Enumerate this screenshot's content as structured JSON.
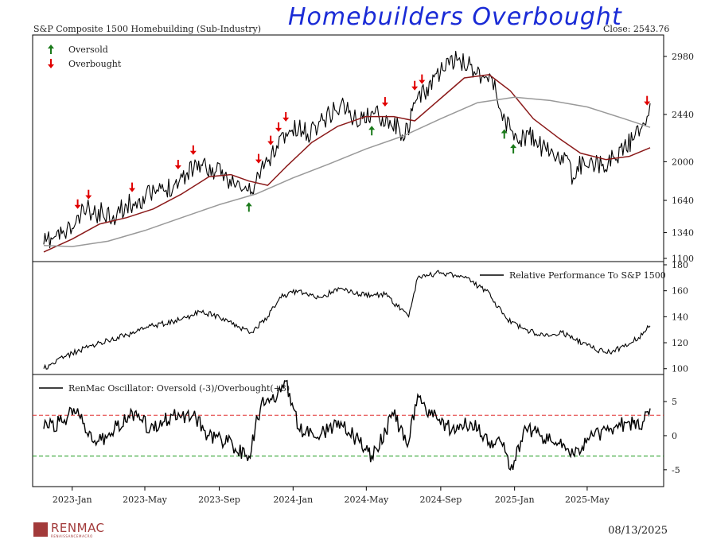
{
  "header": {
    "chart_title": "S&P Composite 1500 Homebuilding (Sub-Industry)",
    "annotation": "Homebuilders Overbought",
    "close_label": "Close: 2543.76"
  },
  "footer": {
    "brand": "RENMAC",
    "brand_sub": "RENAISSANCEMACRO",
    "date": "08/13/2025"
  },
  "colors": {
    "price": "#000000",
    "ma_short": "#8b1a1a",
    "ma_long": "#999999",
    "oversold_arrow": "#1a7a1a",
    "overbought_arrow": "#e00000",
    "overbought_line": "#e03030",
    "oversold_line": "#1a9a1a"
  },
  "chart_data": [
    {
      "type": "line",
      "panel": "price",
      "legend": [
        "Oversold",
        "Overbought"
      ],
      "ylim": [
        1100,
        3150
      ],
      "yticks": [
        1100,
        1340,
        1640,
        2000,
        2440,
        2980
      ],
      "xticks": [
        "2023-Jan",
        "2023-May",
        "2023-Sep",
        "2024-Jan",
        "2024-May",
        "2024-Sep",
        "2025-Jan",
        "2025-May"
      ],
      "x_range": [
        "2022-11-15",
        "2025-08-13"
      ],
      "series": [
        {
          "role": "price",
          "points": [
            [
              "2022-11-15",
              1230
            ],
            [
              "2022-12-01",
              1290
            ],
            [
              "2022-12-15",
              1330
            ],
            [
              "2023-01-01",
              1380
            ],
            [
              "2023-01-15",
              1500
            ],
            [
              "2023-01-25",
              1560
            ],
            [
              "2023-02-05",
              1510
            ],
            [
              "2023-02-20",
              1530
            ],
            [
              "2023-03-10",
              1500
            ],
            [
              "2023-04-01",
              1590
            ],
            [
              "2023-04-20",
              1640
            ],
            [
              "2023-05-10",
              1700
            ],
            [
              "2023-06-01",
              1730
            ],
            [
              "2023-06-20",
              1800
            ],
            [
              "2023-07-10",
              1900
            ],
            [
              "2023-07-25",
              1990
            ],
            [
              "2023-08-10",
              1950
            ],
            [
              "2023-08-25",
              1900
            ],
            [
              "2023-09-10",
              1880
            ],
            [
              "2023-09-25",
              1800
            ],
            [
              "2023-10-10",
              1740
            ],
            [
              "2023-10-25",
              1720
            ],
            [
              "2023-11-05",
              1880
            ],
            [
              "2023-11-20",
              2000
            ],
            [
              "2023-12-05",
              2150
            ],
            [
              "2023-12-20",
              2270
            ],
            [
              "2024-01-10",
              2300
            ],
            [
              "2024-01-25",
              2260
            ],
            [
              "2024-02-15",
              2380
            ],
            [
              "2024-03-10",
              2480
            ],
            [
              "2024-03-25",
              2540
            ],
            [
              "2024-04-10",
              2390
            ],
            [
              "2024-04-25",
              2400
            ],
            [
              "2024-05-15",
              2450
            ],
            [
              "2024-06-05",
              2400
            ],
            [
              "2024-06-25",
              2300
            ],
            [
              "2024-07-10",
              2250
            ],
            [
              "2024-07-18",
              2550
            ],
            [
              "2024-08-05",
              2640
            ],
            [
              "2024-08-25",
              2820
            ],
            [
              "2024-09-15",
              2900
            ],
            [
              "2024-09-30",
              2950
            ],
            [
              "2024-10-20",
              2900
            ],
            [
              "2024-11-10",
              2800
            ],
            [
              "2024-11-25",
              2770
            ],
            [
              "2024-12-10",
              2460
            ],
            [
              "2024-12-25",
              2300
            ],
            [
              "2025-01-10",
              2200
            ],
            [
              "2025-01-25",
              2250
            ],
            [
              "2025-02-10",
              2150
            ],
            [
              "2025-03-01",
              2080
            ],
            [
              "2025-03-20",
              2060
            ],
            [
              "2025-04-08",
              1850
            ],
            [
              "2025-04-25",
              2020
            ],
            [
              "2025-05-10",
              1990
            ],
            [
              "2025-05-25",
              1960
            ],
            [
              "2025-06-15",
              2040
            ],
            [
              "2025-07-01",
              2150
            ],
            [
              "2025-07-15",
              2200
            ],
            [
              "2025-07-28",
              2300
            ],
            [
              "2025-08-08",
              2420
            ],
            [
              "2025-08-13",
              2544
            ]
          ]
        },
        {
          "role": "ma_short",
          "points": [
            [
              "2022-11-15",
              1160
            ],
            [
              "2023-01-01",
              1280
            ],
            [
              "2023-02-15",
              1420
            ],
            [
              "2023-04-01",
              1480
            ],
            [
              "2023-05-15",
              1560
            ],
            [
              "2023-07-01",
              1700
            ],
            [
              "2023-08-15",
              1860
            ],
            [
              "2023-09-20",
              1880
            ],
            [
              "2023-10-20",
              1820
            ],
            [
              "2023-11-20",
              1780
            ],
            [
              "2023-12-20",
              1950
            ],
            [
              "2024-02-01",
              2180
            ],
            [
              "2024-03-15",
              2330
            ],
            [
              "2024-04-30",
              2420
            ],
            [
              "2024-06-15",
              2420
            ],
            [
              "2024-07-20",
              2380
            ],
            [
              "2024-08-30",
              2580
            ],
            [
              "2024-10-10",
              2780
            ],
            [
              "2024-11-20",
              2810
            ],
            [
              "2024-12-25",
              2660
            ],
            [
              "2025-02-01",
              2400
            ],
            [
              "2025-03-15",
              2220
            ],
            [
              "2025-04-20",
              2080
            ],
            [
              "2025-06-01",
              2020
            ],
            [
              "2025-07-10",
              2050
            ],
            [
              "2025-08-13",
              2130
            ]
          ]
        },
        {
          "role": "ma_long",
          "points": [
            [
              "2022-11-15",
              1220
            ],
            [
              "2023-01-01",
              1210
            ],
            [
              "2023-03-01",
              1260
            ],
            [
              "2023-05-01",
              1360
            ],
            [
              "2023-07-01",
              1480
            ],
            [
              "2023-09-01",
              1600
            ],
            [
              "2023-11-01",
              1700
            ],
            [
              "2024-01-01",
              1850
            ],
            [
              "2024-03-01",
              1980
            ],
            [
              "2024-05-01",
              2120
            ],
            [
              "2024-07-01",
              2240
            ],
            [
              "2024-09-01",
              2400
            ],
            [
              "2024-11-01",
              2550
            ],
            [
              "2025-01-01",
              2600
            ],
            [
              "2025-03-01",
              2570
            ],
            [
              "2025-05-01",
              2510
            ],
            [
              "2025-07-01",
              2400
            ],
            [
              "2025-08-13",
              2320
            ]
          ]
        }
      ],
      "overbought_dates": [
        "2023-01-10",
        "2023-01-28",
        "2023-04-10",
        "2023-06-25",
        "2023-07-20",
        "2023-11-05",
        "2023-11-25",
        "2023-12-08",
        "2023-12-20",
        "2024-06-01",
        "2024-07-20",
        "2024-08-01",
        "2025-08-08"
      ],
      "oversold_dates": [
        "2023-10-20",
        "2024-05-10",
        "2024-12-15",
        "2024-12-30"
      ]
    },
    {
      "type": "line",
      "panel": "relative",
      "legend": [
        "Relative Performance To S&P 1500"
      ],
      "ylim": [
        98,
        180
      ],
      "yticks": [
        100,
        120,
        140,
        160,
        180
      ],
      "series": [
        {
          "name": "Relative Performance To S&P 1500",
          "points": [
            [
              "2022-11-15",
              100
            ],
            [
              "2023-01-01",
              112
            ],
            [
              "2023-02-15",
              120
            ],
            [
              "2023-04-01",
              126
            ],
            [
              "2023-05-15",
              133
            ],
            [
              "2023-07-01",
              138
            ],
            [
              "2023-08-01",
              144
            ],
            [
              "2023-09-01",
              140
            ],
            [
              "2023-10-01",
              132
            ],
            [
              "2023-10-25",
              128
            ],
            [
              "2023-11-20",
              140
            ],
            [
              "2023-12-10",
              155
            ],
            [
              "2024-01-10",
              160
            ],
            [
              "2024-02-15",
              155
            ],
            [
              "2024-03-20",
              162
            ],
            [
              "2024-04-20",
              157
            ],
            [
              "2024-06-01",
              157
            ],
            [
              "2024-07-10",
              140
            ],
            [
              "2024-07-25",
              170
            ],
            [
              "2024-09-01",
              174
            ],
            [
              "2024-10-10",
              170
            ],
            [
              "2024-11-15",
              160
            ],
            [
              "2024-12-20",
              138
            ],
            [
              "2025-01-20",
              130
            ],
            [
              "2025-02-20",
              125
            ],
            [
              "2025-03-20",
              128
            ],
            [
              "2025-05-01",
              118
            ],
            [
              "2025-06-01",
              112
            ],
            [
              "2025-07-01",
              117
            ],
            [
              "2025-07-25",
              124
            ],
            [
              "2025-08-13",
              133
            ]
          ]
        }
      ]
    },
    {
      "type": "line",
      "panel": "oscillator",
      "legend": [
        "RenMac Oscillator: Oversold (-3)/Overbought(+3)"
      ],
      "ylim": [
        -7,
        8.5
      ],
      "yticks": [
        -5,
        0,
        5
      ],
      "reference_lines": {
        "overbought": 3,
        "oversold": -3
      },
      "series": [
        {
          "name": "RenMac Oscillator: Oversold (-3)/Overbought(+3)",
          "points": [
            [
              "2022-11-15",
              1
            ],
            [
              "2022-12-15",
              2
            ],
            [
              "2023-01-10",
              4
            ],
            [
              "2023-02-05",
              -1
            ],
            [
              "2023-03-01",
              0
            ],
            [
              "2023-04-10",
              3.5
            ],
            [
              "2023-05-10",
              1
            ],
            [
              "2023-06-15",
              3
            ],
            [
              "2023-07-20",
              3
            ],
            [
              "2023-08-15",
              0
            ],
            [
              "2023-09-15",
              -1
            ],
            [
              "2023-10-20",
              -3
            ],
            [
              "2023-11-10",
              5
            ],
            [
              "2023-12-01",
              5
            ],
            [
              "2023-12-20",
              8
            ],
            [
              "2024-01-10",
              1
            ],
            [
              "2024-02-15",
              0
            ],
            [
              "2024-03-20",
              2
            ],
            [
              "2024-04-20",
              -1
            ],
            [
              "2024-05-10",
              -3
            ],
            [
              "2024-06-15",
              3
            ],
            [
              "2024-07-10",
              -1
            ],
            [
              "2024-07-25",
              6
            ],
            [
              "2024-08-15",
              3
            ],
            [
              "2024-09-20",
              1
            ],
            [
              "2024-10-20",
              2
            ],
            [
              "2024-11-20",
              -1
            ],
            [
              "2024-12-10",
              -1
            ],
            [
              "2024-12-25",
              -5
            ],
            [
              "2025-01-20",
              1
            ],
            [
              "2025-02-15",
              0
            ],
            [
              "2025-03-10",
              -1
            ],
            [
              "2025-04-10",
              -3
            ],
            [
              "2025-05-10",
              0
            ],
            [
              "2025-06-10",
              1
            ],
            [
              "2025-07-10",
              2
            ],
            [
              "2025-07-28",
              1
            ],
            [
              "2025-08-13",
              4
            ]
          ]
        }
      ]
    }
  ]
}
